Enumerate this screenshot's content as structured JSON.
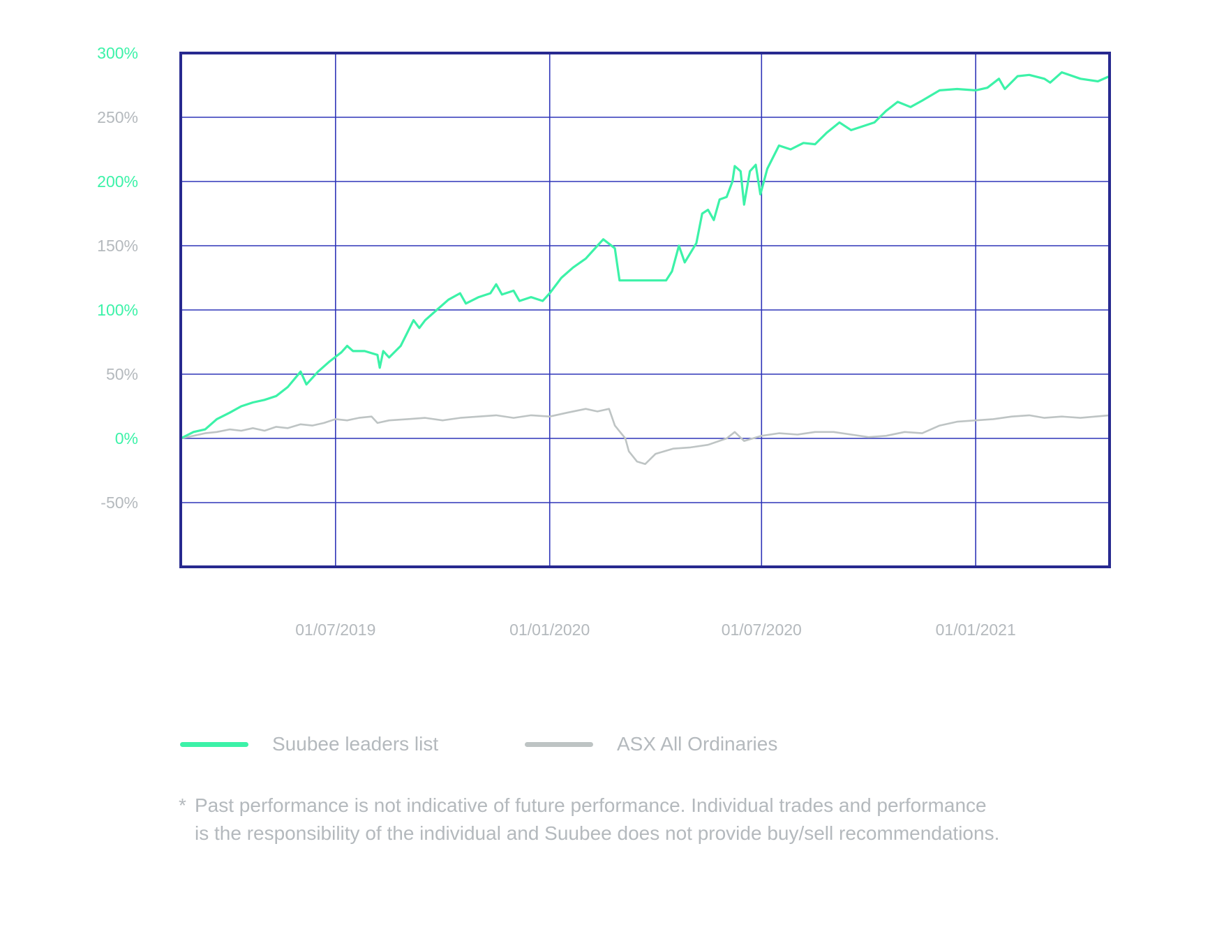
{
  "colors": {
    "frame": "#27298f",
    "grid": "#2f35b8",
    "leaders": "#3cf2a8",
    "asx": "#bec4c4",
    "tick_text": "#b4b9bd"
  },
  "legend": {
    "leaders_label": "Suubee leaders list",
    "asx_label": "ASX All Ordinaries"
  },
  "disclaimer": {
    "star": "*",
    "line1": "Past performance is not indicative of future performance. Individual trades and performance",
    "line2": "is the responsibility of the individual and Suubee does not provide buy/sell recommendations."
  },
  "chart_data": {
    "type": "line",
    "title": "",
    "xlabel": "",
    "ylabel": "",
    "x_range": [
      "2019-02-18",
      "2021-04-26"
    ],
    "ylim": [
      -100,
      300
    ],
    "grid": true,
    "legend_position": "bottom-left",
    "x_ticks": [
      {
        "date": "2019-07-01",
        "label": "01/07/2019"
      },
      {
        "date": "2020-01-01",
        "label": "01/01/2020"
      },
      {
        "date": "2020-07-01",
        "label": "01/07/2020"
      },
      {
        "date": "2021-01-01",
        "label": "01/01/2021"
      }
    ],
    "x_gridlines": [
      "2019-07-01",
      "2020-01-01",
      "2020-07-01",
      "2021-01-01"
    ],
    "y_ticks": [
      {
        "value": 300,
        "label": "300%",
        "color": "#3cf2a8"
      },
      {
        "value": 250,
        "label": "250%",
        "color": "#b4b9bd"
      },
      {
        "value": 200,
        "label": "200%",
        "color": "#3cf2a8"
      },
      {
        "value": 150,
        "label": "150%",
        "color": "#b4b9bd"
      },
      {
        "value": 100,
        "label": "100%",
        "color": "#3cf2a8"
      },
      {
        "value": 50,
        "label": "50%",
        "color": "#b4b9bd"
      },
      {
        "value": 0,
        "label": "0%",
        "color": "#3cf2a8"
      },
      {
        "value": -50,
        "label": "-50%",
        "color": "#b4b9bd"
      }
    ],
    "series": [
      {
        "name": "Suubee leaders list",
        "color": "#3cf2a8",
        "points": [
          [
            "2019-02-18",
            0
          ],
          [
            "2019-03-01",
            5
          ],
          [
            "2019-03-11",
            7
          ],
          [
            "2019-03-21",
            15
          ],
          [
            "2019-04-01",
            20
          ],
          [
            "2019-04-11",
            25
          ],
          [
            "2019-04-21",
            28
          ],
          [
            "2019-05-01",
            30
          ],
          [
            "2019-05-11",
            33
          ],
          [
            "2019-05-21",
            40
          ],
          [
            "2019-06-01",
            52
          ],
          [
            "2019-06-06",
            42
          ],
          [
            "2019-06-16",
            52
          ],
          [
            "2019-06-26",
            60
          ],
          [
            "2019-07-06",
            67
          ],
          [
            "2019-07-11",
            72
          ],
          [
            "2019-07-16",
            68
          ],
          [
            "2019-07-26",
            68
          ],
          [
            "2019-08-06",
            65
          ],
          [
            "2019-08-08",
            55
          ],
          [
            "2019-08-11",
            68
          ],
          [
            "2019-08-16",
            63
          ],
          [
            "2019-08-26",
            72
          ],
          [
            "2019-09-06",
            92
          ],
          [
            "2019-09-11",
            86
          ],
          [
            "2019-09-16",
            92
          ],
          [
            "2019-09-26",
            100
          ],
          [
            "2019-10-06",
            108
          ],
          [
            "2019-10-16",
            113
          ],
          [
            "2019-10-21",
            105
          ],
          [
            "2019-11-01",
            110
          ],
          [
            "2019-11-11",
            113
          ],
          [
            "2019-11-16",
            120
          ],
          [
            "2019-11-21",
            112
          ],
          [
            "2019-12-01",
            115
          ],
          [
            "2019-12-06",
            107
          ],
          [
            "2019-12-16",
            110
          ],
          [
            "2019-12-26",
            107
          ],
          [
            "2020-01-01",
            113
          ],
          [
            "2020-01-11",
            125
          ],
          [
            "2020-01-21",
            133
          ],
          [
            "2020-02-01",
            140
          ],
          [
            "2020-02-11",
            150
          ],
          [
            "2020-02-16",
            155
          ],
          [
            "2020-02-26",
            148
          ],
          [
            "2020-03-01",
            123
          ],
          [
            "2020-04-10",
            123
          ],
          [
            "2020-04-15",
            130
          ],
          [
            "2020-04-21",
            150
          ],
          [
            "2020-04-26",
            137
          ],
          [
            "2020-05-06",
            152
          ],
          [
            "2020-05-11",
            175
          ],
          [
            "2020-05-16",
            178
          ],
          [
            "2020-05-21",
            170
          ],
          [
            "2020-05-26",
            186
          ],
          [
            "2020-06-01",
            188
          ],
          [
            "2020-06-06",
            200
          ],
          [
            "2020-06-08",
            212
          ],
          [
            "2020-06-13",
            208
          ],
          [
            "2020-06-16",
            182
          ],
          [
            "2020-06-21",
            208
          ],
          [
            "2020-06-26",
            213
          ],
          [
            "2020-06-30",
            190
          ],
          [
            "2020-07-06",
            210
          ],
          [
            "2020-07-16",
            228
          ],
          [
            "2020-07-26",
            225
          ],
          [
            "2020-08-06",
            230
          ],
          [
            "2020-08-16",
            229
          ],
          [
            "2020-08-26",
            238
          ],
          [
            "2020-09-06",
            246
          ],
          [
            "2020-09-16",
            240
          ],
          [
            "2020-09-26",
            243
          ],
          [
            "2020-10-06",
            246
          ],
          [
            "2020-10-16",
            255
          ],
          [
            "2020-10-26",
            262
          ],
          [
            "2020-11-06",
            258
          ],
          [
            "2020-11-16",
            263
          ],
          [
            "2020-12-01",
            271
          ],
          [
            "2020-12-16",
            272
          ],
          [
            "2021-01-01",
            271
          ],
          [
            "2021-01-11",
            273
          ],
          [
            "2021-01-21",
            280
          ],
          [
            "2021-01-26",
            272
          ],
          [
            "2021-02-06",
            282
          ],
          [
            "2021-02-16",
            283
          ],
          [
            "2021-03-01",
            280
          ],
          [
            "2021-03-06",
            277
          ],
          [
            "2021-03-16",
            285
          ],
          [
            "2021-04-01",
            280
          ],
          [
            "2021-04-16",
            278
          ],
          [
            "2021-04-26",
            282
          ]
        ]
      },
      {
        "name": "ASX All Ordinaries",
        "color": "#bec4c4",
        "points": [
          [
            "2019-02-18",
            0
          ],
          [
            "2019-03-01",
            2
          ],
          [
            "2019-03-11",
            4
          ],
          [
            "2019-03-21",
            5
          ],
          [
            "2019-04-01",
            7
          ],
          [
            "2019-04-11",
            6
          ],
          [
            "2019-04-21",
            8
          ],
          [
            "2019-05-01",
            6
          ],
          [
            "2019-05-11",
            9
          ],
          [
            "2019-05-21",
            8
          ],
          [
            "2019-06-01",
            11
          ],
          [
            "2019-06-11",
            10
          ],
          [
            "2019-06-21",
            12
          ],
          [
            "2019-07-01",
            15
          ],
          [
            "2019-07-11",
            14
          ],
          [
            "2019-07-21",
            16
          ],
          [
            "2019-08-01",
            17
          ],
          [
            "2019-08-06",
            12
          ],
          [
            "2019-08-16",
            14
          ],
          [
            "2019-09-01",
            15
          ],
          [
            "2019-09-16",
            16
          ],
          [
            "2019-10-01",
            14
          ],
          [
            "2019-10-16",
            16
          ],
          [
            "2019-11-01",
            17
          ],
          [
            "2019-11-16",
            18
          ],
          [
            "2019-12-01",
            16
          ],
          [
            "2019-12-16",
            18
          ],
          [
            "2020-01-01",
            17
          ],
          [
            "2020-01-16",
            20
          ],
          [
            "2020-02-01",
            23
          ],
          [
            "2020-02-11",
            21
          ],
          [
            "2020-02-21",
            23
          ],
          [
            "2020-02-26",
            10
          ],
          [
            "2020-03-06",
            0
          ],
          [
            "2020-03-09",
            -10
          ],
          [
            "2020-03-16",
            -18
          ],
          [
            "2020-03-23",
            -20
          ],
          [
            "2020-04-01",
            -12
          ],
          [
            "2020-04-16",
            -8
          ],
          [
            "2020-05-01",
            -7
          ],
          [
            "2020-05-16",
            -5
          ],
          [
            "2020-06-01",
            0
          ],
          [
            "2020-06-08",
            5
          ],
          [
            "2020-06-16",
            -2
          ],
          [
            "2020-07-01",
            2
          ],
          [
            "2020-07-16",
            4
          ],
          [
            "2020-08-01",
            3
          ],
          [
            "2020-08-16",
            5
          ],
          [
            "2020-09-01",
            5
          ],
          [
            "2020-09-16",
            3
          ],
          [
            "2020-10-01",
            1
          ],
          [
            "2020-10-16",
            2
          ],
          [
            "2020-11-01",
            5
          ],
          [
            "2020-11-16",
            4
          ],
          [
            "2020-12-01",
            10
          ],
          [
            "2020-12-16",
            13
          ],
          [
            "2021-01-01",
            14
          ],
          [
            "2021-01-16",
            15
          ],
          [
            "2021-02-01",
            17
          ],
          [
            "2021-02-16",
            18
          ],
          [
            "2021-03-01",
            16
          ],
          [
            "2021-03-16",
            17
          ],
          [
            "2021-04-01",
            16
          ],
          [
            "2021-04-26",
            18
          ]
        ]
      }
    ]
  }
}
